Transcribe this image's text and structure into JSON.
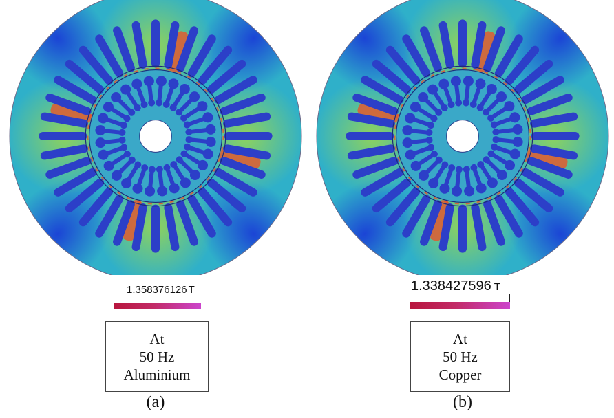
{
  "panels": [
    {
      "id": "a",
      "value": "1.358376126",
      "unit": "T",
      "info": [
        "At",
        "50 Hz",
        "Aluminium"
      ],
      "caption": "(a)"
    },
    {
      "id": "b",
      "value": "1.338427596",
      "unit": "T",
      "info": [
        "At",
        "50 Hz",
        "Copper"
      ],
      "caption": "(b)"
    }
  ],
  "colors": {
    "field_low": "#1a3fd6",
    "field_mid": "#2fb0c9",
    "field_high": "#9fd84a",
    "hotspot": "#e8542a",
    "slot": "#2c3fc8",
    "bar_start": "#b8163e",
    "bar_end": "#cc44cc"
  }
}
